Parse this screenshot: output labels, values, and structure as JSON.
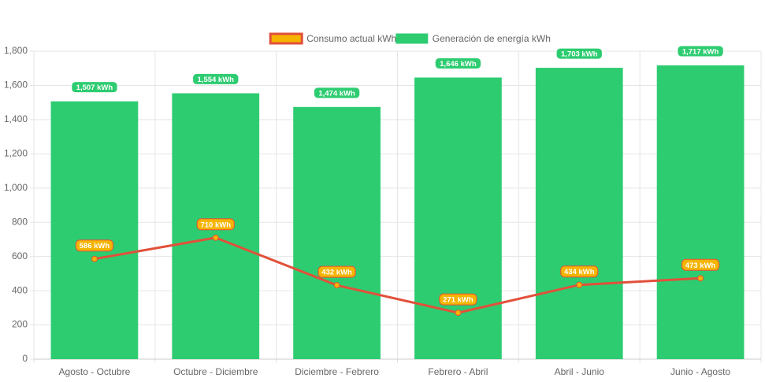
{
  "chart_data": {
    "type": "combo",
    "categories": [
      "Agosto - Octubre",
      "Octubre - Diciembre",
      "Diciembre - Febrero",
      "Febrero - Abril",
      "Abril - Junio",
      "Junio - Agosto"
    ],
    "series": [
      {
        "name": "Consumo actual kWh",
        "type": "line",
        "color": "#e2503a",
        "fill_color": "#f5b400",
        "values": [
          586,
          710,
          432,
          271,
          434,
          473
        ],
        "value_labels": [
          "586 kWh",
          "710 kWh",
          "432 kWh",
          "271 kWh",
          "434 kWh",
          "473 kWh"
        ]
      },
      {
        "name": "Generación de energía kWh",
        "type": "bar",
        "color": "#2ecc71",
        "values": [
          1507,
          1554,
          1474,
          1646,
          1703,
          1717
        ],
        "value_labels": [
          "1,507 kWh",
          "1,554 kWh",
          "1,474 kWh",
          "1,646 kWh",
          "1,703 kWh",
          "1,717 kWh"
        ]
      }
    ],
    "ylim": [
      0,
      1800
    ],
    "yticks": [
      0,
      200,
      400,
      600,
      800,
      {
        "value": 1000,
        "label": "1,000"
      },
      {
        "value": 1200,
        "label": "1,200"
      },
      {
        "value": 1400,
        "label": "1,400"
      },
      {
        "value": 1600,
        "label": "1,600"
      },
      {
        "value": 1800,
        "label": "1,800"
      }
    ],
    "grid": true,
    "legend": "top"
  }
}
